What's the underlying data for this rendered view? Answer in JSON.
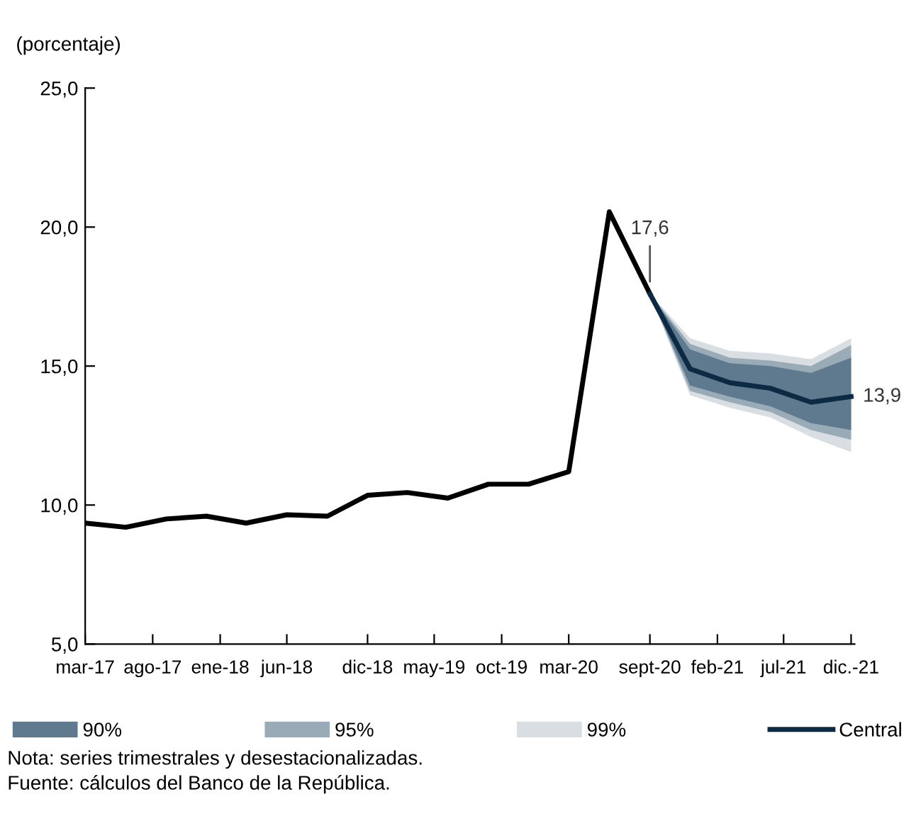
{
  "chart_data": {
    "type": "line",
    "ylabel": "(porcentaje)",
    "x": [
      "2017-03",
      "2017-06",
      "2017-09",
      "2017-12",
      "2018-03",
      "2018-06",
      "2018-09",
      "2018-12",
      "2019-03",
      "2019-06",
      "2019-09",
      "2019-12",
      "2020-03",
      "2020-06",
      "2020-09",
      "2020-12",
      "2021-03",
      "2021-06",
      "2021-09",
      "2021-12"
    ],
    "series": [
      {
        "type": "line",
        "name": "99%",
        "color": "#d9dee3",
        "x": [
          "2020-09",
          "2020-12",
          "2021-03",
          "2021-06",
          "2021-09",
          "2021-12"
        ],
        "values": [
          null,
          null,
          null,
          null,
          null,
          null
        ],
        "lower": [
          17.6,
          13.95,
          13.5,
          13.15,
          12.45,
          11.9
        ],
        "upper": [
          17.6,
          16.0,
          15.55,
          15.45,
          15.25,
          16.0
        ]
      },
      {
        "type": "line",
        "name": "95%",
        "color": "#9aabb8",
        "x": [
          "2020-09",
          "2020-12",
          "2021-03",
          "2021-06",
          "2021-09",
          "2021-12"
        ],
        "values": [
          null,
          null,
          null,
          null,
          null,
          null
        ],
        "lower": [
          17.6,
          14.1,
          13.7,
          13.35,
          12.7,
          12.35
        ],
        "upper": [
          17.6,
          15.8,
          15.3,
          15.2,
          15.0,
          15.75
        ]
      },
      {
        "type": "line",
        "name": "90%",
        "color": "#5f7a8f",
        "x": [
          "2020-09",
          "2020-12",
          "2021-03",
          "2021-06",
          "2021-09",
          "2021-12"
        ],
        "values": [
          null,
          null,
          null,
          null,
          null,
          null
        ],
        "lower": [
          17.6,
          14.3,
          13.9,
          13.55,
          12.95,
          12.7
        ],
        "upper": [
          17.6,
          15.6,
          15.1,
          15.0,
          14.75,
          15.3
        ]
      },
      {
        "type": "line",
        "color": "#000000",
        "values": [
          9.35,
          9.2,
          9.5,
          9.6,
          9.35,
          9.65,
          9.6,
          10.35,
          10.45,
          10.25,
          10.75,
          10.75,
          11.2,
          20.55,
          17.6,
          null,
          null,
          null,
          null,
          null
        ]
      },
      {
        "type": "line",
        "name": "Central",
        "color": "#0d2a45",
        "values": [
          null,
          null,
          null,
          null,
          null,
          null,
          null,
          null,
          null,
          null,
          null,
          null,
          null,
          null,
          17.6,
          14.9,
          14.4,
          14.2,
          13.7,
          13.9
        ]
      }
    ],
    "xlim": [
      "2017-03",
      "2021-12"
    ],
    "xticks": [
      {
        "value": "2017-03",
        "label": "mar-17"
      },
      {
        "value": "2017-08",
        "label": "ago-17"
      },
      {
        "value": "2018-01",
        "label": "ene-18"
      },
      {
        "value": "2018-06",
        "label": "jun-18"
      },
      {
        "value": "2018-12",
        "label": "dic-18"
      },
      {
        "value": "2019-05",
        "label": "may-19"
      },
      {
        "value": "2019-10",
        "label": "oct-19"
      },
      {
        "value": "2020-03",
        "label": "mar-20"
      },
      {
        "value": "2020-09",
        "label": "sept-20"
      },
      {
        "value": "2021-02",
        "label": "feb-21"
      },
      {
        "value": "2021-07",
        "label": "jul-21"
      },
      {
        "value": "2021-12",
        "label": "dic.-21"
      }
    ],
    "ylim": [
      5,
      25
    ],
    "yticks": [
      {
        "value": 5,
        "label": "5,0"
      },
      {
        "value": 10,
        "label": "10,0"
      },
      {
        "value": 15,
        "label": "15,0"
      },
      {
        "value": 20,
        "label": "20,0"
      },
      {
        "value": 25,
        "label": "25,0"
      }
    ],
    "grid": false,
    "legend": "bottom",
    "annotations": [
      {
        "text": "17,6",
        "x": "2020-09",
        "y": 17.6
      },
      {
        "text": "13,9",
        "x": "2021-12",
        "y": 13.9
      },
      "Nota: series trimestrales y desestacionalizadas.",
      "Fuente: cálculos del Banco de la República."
    ]
  }
}
